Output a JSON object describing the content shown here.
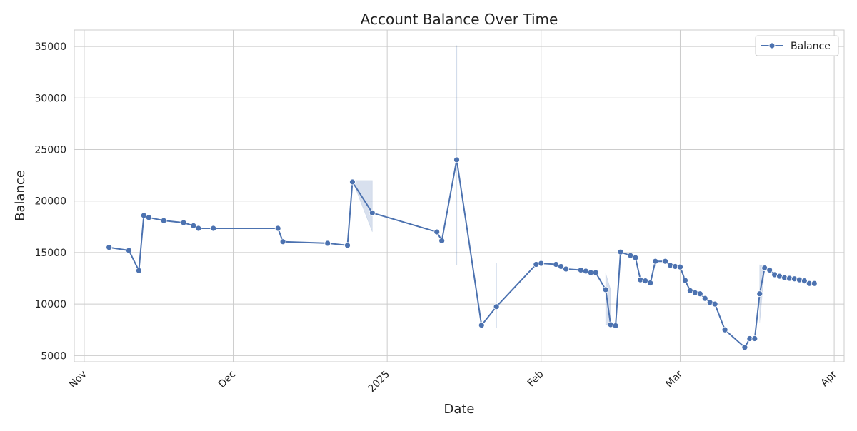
{
  "chart_data": {
    "type": "line",
    "title": "Account Balance Over Time",
    "xlabel": "Date",
    "ylabel": "Balance",
    "ylim": [
      4400,
      36600
    ],
    "xlim": [
      "2024-10-30",
      "2025-04-03"
    ],
    "x_ticks": [
      {
        "date": "2024-11-01",
        "label": "Nov"
      },
      {
        "date": "2024-12-01",
        "label": "Dec"
      },
      {
        "date": "2025-01-01",
        "label": "2025"
      },
      {
        "date": "2025-02-01",
        "label": "Feb"
      },
      {
        "date": "2025-03-01",
        "label": "Mar"
      },
      {
        "date": "2025-04-01",
        "label": "Apr"
      }
    ],
    "y_ticks": [
      5000,
      10000,
      15000,
      20000,
      25000,
      30000,
      35000
    ],
    "grid": true,
    "legend_position": "top-right",
    "color": "#4c72b0",
    "series": [
      {
        "name": "Balance",
        "points": [
          [
            "2024-11-06",
            15500
          ],
          [
            "2024-11-10",
            15200
          ],
          [
            "2024-11-12",
            13250
          ],
          [
            "2024-11-13",
            18600
          ],
          [
            "2024-11-14",
            18400
          ],
          [
            "2024-11-17",
            18100
          ],
          [
            "2024-11-21",
            17900
          ],
          [
            "2024-11-23",
            17600
          ],
          [
            "2024-11-24",
            17350
          ],
          [
            "2024-11-27",
            17350
          ],
          [
            "2024-12-10",
            17350
          ],
          [
            "2024-12-11",
            16050
          ],
          [
            "2024-12-20",
            15900
          ],
          [
            "2024-12-24",
            15700
          ],
          [
            "2024-12-25",
            21850
          ],
          [
            "2024-12-29",
            18850
          ],
          [
            "2025-01-11",
            17000
          ],
          [
            "2025-01-12",
            16150
          ],
          [
            "2025-01-15",
            24000
          ],
          [
            "2025-01-20",
            7950
          ],
          [
            "2025-01-23",
            9750
          ],
          [
            "2025-01-31",
            13850
          ],
          [
            "2025-02-01",
            13950
          ],
          [
            "2025-02-04",
            13850
          ],
          [
            "2025-02-05",
            13650
          ],
          [
            "2025-02-06",
            13400
          ],
          [
            "2025-02-09",
            13300
          ],
          [
            "2025-02-10",
            13200
          ],
          [
            "2025-02-11",
            13050
          ],
          [
            "2025-02-12",
            13050
          ],
          [
            "2025-02-14",
            11400
          ],
          [
            "2025-02-15",
            8000
          ],
          [
            "2025-02-16",
            7900
          ],
          [
            "2025-02-17",
            15050
          ],
          [
            "2025-02-19",
            14700
          ],
          [
            "2025-02-20",
            14500
          ],
          [
            "2025-02-21",
            12350
          ],
          [
            "2025-02-22",
            12250
          ],
          [
            "2025-02-23",
            12050
          ],
          [
            "2025-02-24",
            14150
          ],
          [
            "2025-02-26",
            14150
          ],
          [
            "2025-02-27",
            13750
          ],
          [
            "2025-02-28",
            13650
          ],
          [
            "2025-03-01",
            13600
          ],
          [
            "2025-03-02",
            12300
          ],
          [
            "2025-03-03",
            11300
          ],
          [
            "2025-03-04",
            11100
          ],
          [
            "2025-03-05",
            11000
          ],
          [
            "2025-03-06",
            10550
          ],
          [
            "2025-03-07",
            10150
          ],
          [
            "2025-03-08",
            10000
          ],
          [
            "2025-03-10",
            7500
          ],
          [
            "2025-03-14",
            5800
          ],
          [
            "2025-03-15",
            6650
          ],
          [
            "2025-03-16",
            6650
          ],
          [
            "2025-03-17",
            11000
          ],
          [
            "2025-03-18",
            13500
          ],
          [
            "2025-03-19",
            13300
          ],
          [
            "2025-03-20",
            12850
          ],
          [
            "2025-03-21",
            12700
          ],
          [
            "2025-03-22",
            12550
          ],
          [
            "2025-03-23",
            12500
          ],
          [
            "2025-03-24",
            12450
          ],
          [
            "2025-03-25",
            12350
          ],
          [
            "2025-03-26",
            12250
          ],
          [
            "2025-03-27",
            12000
          ],
          [
            "2025-03-28",
            12000
          ]
        ]
      }
    ],
    "confidence_bands": [
      {
        "x": [
          "2024-12-25",
          "2024-12-29"
        ],
        "lower": [
          22000,
          17000
        ],
        "upper": [
          22000,
          22000
        ]
      },
      {
        "x": [
          "2025-01-15",
          "2025-01-15"
        ],
        "lower": [
          13800,
          13800
        ],
        "upper": [
          35100,
          35100
        ]
      },
      {
        "x": [
          "2025-01-23",
          "2025-01-23"
        ],
        "lower": [
          7700,
          7700
        ],
        "upper": [
          14000,
          14000
        ]
      },
      {
        "x": [
          "2025-02-14",
          "2025-02-15"
        ],
        "lower": [
          8000,
          8000
        ],
        "upper": [
          13000,
          11400
        ]
      },
      {
        "x": [
          "2025-03-17",
          "2025-03-18"
        ],
        "lower": [
          8200,
          13500
        ],
        "upper": [
          13800,
          13600
        ]
      }
    ]
  }
}
